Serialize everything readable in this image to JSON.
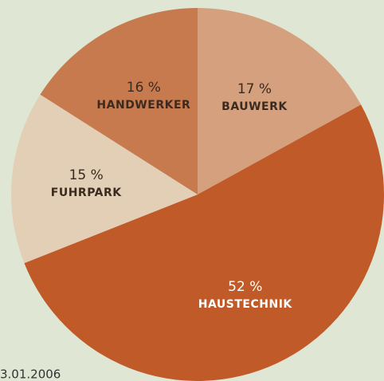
{
  "chart_data": {
    "type": "pie",
    "categories": [
      "BAUWERK",
      "HAUSTECHNIK",
      "FUHRPARK",
      "HANDWERKER"
    ],
    "values": [
      17,
      52,
      15,
      16
    ],
    "value_labels": [
      "17 %",
      "52 %",
      "15 %",
      "16 %"
    ],
    "colors": [
      "#d4a07e",
      "#c05a28",
      "#e3cfb6",
      "#c77a4e"
    ],
    "label_colors": [
      "#3a2a20",
      "#ffffff",
      "#3a2a20",
      "#3a2a20"
    ],
    "footnote": "3.01.2006"
  }
}
